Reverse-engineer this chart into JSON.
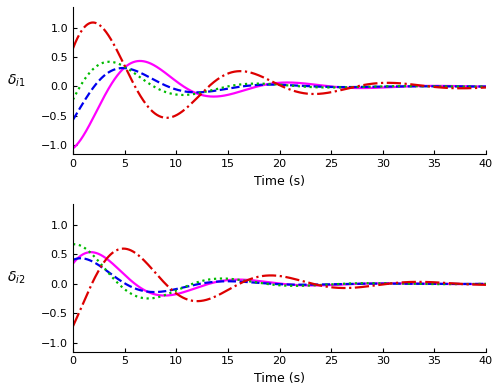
{
  "xlabel": "Time (s)",
  "ylabel_top": "$\\delta_{i1}$",
  "ylabel_bottom": "$\\delta_{i2}$",
  "xlim": [
    0,
    40
  ],
  "ylim": [
    -1.15,
    1.35
  ],
  "xticks": [
    0,
    5,
    10,
    15,
    20,
    25,
    30,
    35,
    40
  ],
  "yticks": [
    -1,
    -0.5,
    0,
    0.5,
    1
  ],
  "colors": [
    "#FF00FF",
    "#0000EE",
    "#00BB00",
    "#DD0000"
  ],
  "linestyles": [
    "-",
    "--",
    ":",
    "-."
  ],
  "linewidths": [
    1.6,
    1.6,
    1.6,
    1.6
  ],
  "top_curves": [
    {
      "amp": 1.05,
      "damping": 0.13,
      "omega": 0.44,
      "phase": -1.5708
    },
    {
      "amp": 0.72,
      "damping": 0.16,
      "omega": 0.44,
      "phase": -0.9
    },
    {
      "amp": 0.75,
      "damping": 0.15,
      "omega": 0.44,
      "phase": -0.3
    },
    {
      "amp": 1.35,
      "damping": 0.1,
      "omega": 0.44,
      "phase": 0.5
    }
  ],
  "bot_curves": [
    {
      "amp": 0.72,
      "damping": 0.14,
      "omega": 0.44,
      "phase": 0.5
    },
    {
      "amp": 0.52,
      "damping": 0.16,
      "omega": 0.44,
      "phase": 0.9
    },
    {
      "amp": 0.72,
      "damping": 0.14,
      "omega": 0.44,
      "phase": 1.2
    },
    {
      "amp": 1.0,
      "damping": 0.1,
      "omega": 0.44,
      "phase": -0.8
    }
  ],
  "background_color": "#ffffff",
  "spine_color": "#555555",
  "tick_labelsize": 8,
  "xlabel_fontsize": 9,
  "ylabel_fontsize": 10
}
